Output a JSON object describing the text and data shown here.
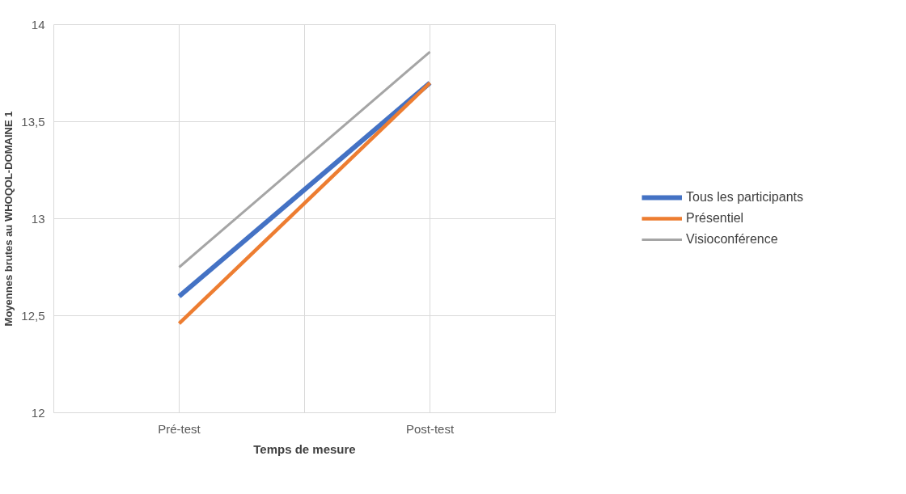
{
  "chart_data": {
    "type": "line",
    "xlabel": "Temps de mesure",
    "ylabel": "Moyennes brutes au WHOQOL-DOMAINE 1",
    "categories": [
      "Pré-test",
      "Post-test"
    ],
    "series": [
      {
        "name": "Tous les participants",
        "color": "#4472c4",
        "values": [
          12.6,
          13.7
        ]
      },
      {
        "name": "Présentiel",
        "color": "#ed7d31",
        "values": [
          12.46,
          13.7
        ]
      },
      {
        "name": "Visioconférence",
        "color": "#a5a5a5",
        "values": [
          12.75,
          13.86
        ]
      }
    ],
    "ylim": [
      12,
      14
    ],
    "yticks": [
      12,
      {
        "value": 12.5,
        "label": "12,5"
      },
      13,
      {
        "value": 13.5,
        "label": "13,5"
      },
      14
    ],
    "grid": true,
    "legend": "right",
    "marker": "none",
    "line_style": "solid"
  }
}
